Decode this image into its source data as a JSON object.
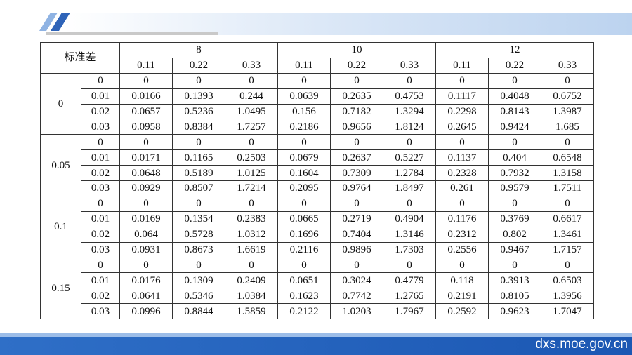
{
  "table": {
    "corner": "标准差",
    "groups": [
      {
        "label": "8",
        "columns": [
          "0.11",
          "0.22",
          "0.33"
        ]
      },
      {
        "label": "10",
        "columns": [
          "0.11",
          "0.22",
          "0.33"
        ]
      },
      {
        "label": "12",
        "columns": [
          "0.11",
          "0.22",
          "0.33"
        ]
      }
    ],
    "blocks": [
      {
        "label": "0",
        "rows": [
          [
            "0",
            "0",
            "0",
            "0",
            "0",
            "0",
            "0",
            "0",
            "0",
            "0"
          ],
          [
            "0.01",
            "0.0166",
            "0.1393",
            "0.244",
            "0.0639",
            "0.2635",
            "0.4753",
            "0.1117",
            "0.4048",
            "0.6752"
          ],
          [
            "0.02",
            "0.0657",
            "0.5236",
            "1.0495",
            "0.156",
            "0.7182",
            "1.3294",
            "0.2298",
            "0.8143",
            "1.3987"
          ],
          [
            "0.03",
            "0.0958",
            "0.8384",
            "1.7257",
            "0.2186",
            "0.9656",
            "1.8124",
            "0.2645",
            "0.9424",
            "1.685"
          ]
        ]
      },
      {
        "label": "0.05",
        "rows": [
          [
            "0",
            "0",
            "0",
            "0",
            "0",
            "0",
            "0",
            "0",
            "0",
            "0"
          ],
          [
            "0.01",
            "0.0171",
            "0.1165",
            "0.2503",
            "0.0679",
            "0.2637",
            "0.5227",
            "0.1137",
            "0.404",
            "0.6548"
          ],
          [
            "0.02",
            "0.0648",
            "0.5189",
            "1.0125",
            "0.1604",
            "0.7309",
            "1.2784",
            "0.2328",
            "0.7932",
            "1.3158"
          ],
          [
            "0.03",
            "0.0929",
            "0.8507",
            "1.7214",
            "0.2095",
            "0.9764",
            "1.8497",
            "0.261",
            "0.9579",
            "1.7511"
          ]
        ]
      },
      {
        "label": "0.1",
        "rows": [
          [
            "0",
            "0",
            "0",
            "0",
            "0",
            "0",
            "0",
            "0",
            "0",
            "0"
          ],
          [
            "0.01",
            "0.0169",
            "0.1354",
            "0.2383",
            "0.0665",
            "0.2719",
            "0.4904",
            "0.1176",
            "0.3769",
            "0.6617"
          ],
          [
            "0.02",
            "0.064",
            "0.5728",
            "1.0312",
            "0.1696",
            "0.7404",
            "1.3146",
            "0.2312",
            "0.802",
            "1.3461"
          ],
          [
            "0.03",
            "0.0931",
            "0.8673",
            "1.6619",
            "0.2116",
            "0.9896",
            "1.7303",
            "0.2556",
            "0.9467",
            "1.7157"
          ]
        ]
      },
      {
        "label": "0.15",
        "rows": [
          [
            "0",
            "0",
            "0",
            "0",
            "0",
            "0",
            "0",
            "0",
            "0",
            "0"
          ],
          [
            "0.01",
            "0.0176",
            "0.1309",
            "0.2409",
            "0.0651",
            "0.3024",
            "0.4779",
            "0.118",
            "0.3913",
            "0.6503"
          ],
          [
            "0.02",
            "0.0641",
            "0.5346",
            "1.0384",
            "0.1623",
            "0.7742",
            "1.2765",
            "0.2191",
            "0.8105",
            "1.3956"
          ],
          [
            "0.03",
            "0.0996",
            "0.8844",
            "1.5859",
            "0.2122",
            "1.0203",
            "1.7967",
            "0.2592",
            "0.9623",
            "1.7047"
          ]
        ]
      }
    ]
  },
  "footer": {
    "site": "dxs.moe.gov.cn"
  }
}
